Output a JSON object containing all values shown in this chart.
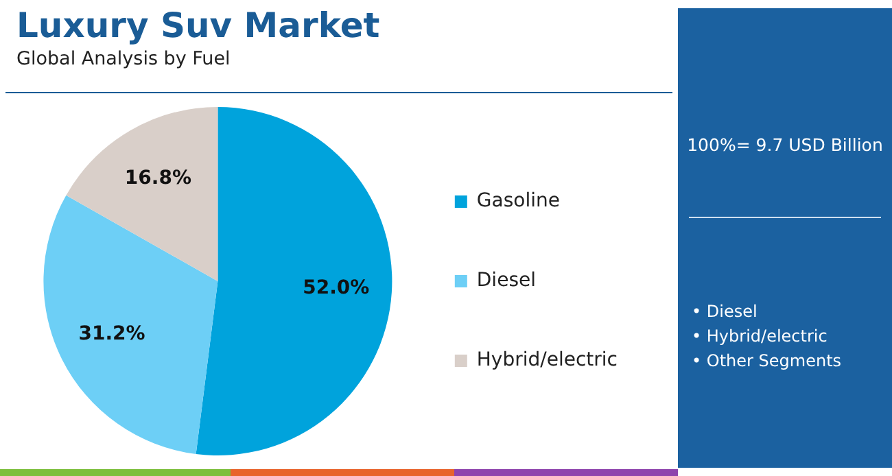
{
  "chart_data": {
    "type": "pie",
    "title": "Luxury Suv Market",
    "subtitle": "Global Analysis by Fuel",
    "categories": [
      "Gasoline",
      "Diesel",
      "Hybrid/electric"
    ],
    "values": [
      52.0,
      31.2,
      16.8
    ],
    "value_labels": [
      "52.0%",
      "31.2%",
      "16.8%"
    ],
    "colors": [
      "#00a3dc",
      "#6dcff6",
      "#d9cfc9"
    ],
    "legend": "right",
    "annotations": [
      "100%= 9.7 USD Billion",
      "• Diesel",
      "• Hybrid/electric",
      "• Other Segments"
    ]
  }
}
